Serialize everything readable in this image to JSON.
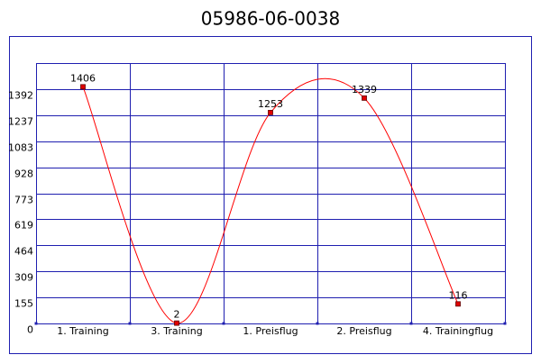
{
  "chart_data": {
    "type": "line",
    "title": "05986-06-0038",
    "categories": [
      "1. Training",
      "3. Training",
      "1. Preisflug",
      "2. Preisflug",
      "4. Trainingflug"
    ],
    "values": [
      1406,
      2,
      1253,
      1339,
      116
    ],
    "color": "#ff0000",
    "ylim": [
      0,
      1547
    ],
    "yticks": [
      0,
      155,
      309,
      464,
      619,
      773,
      928,
      1083,
      1237,
      1392
    ],
    "grid": true
  }
}
